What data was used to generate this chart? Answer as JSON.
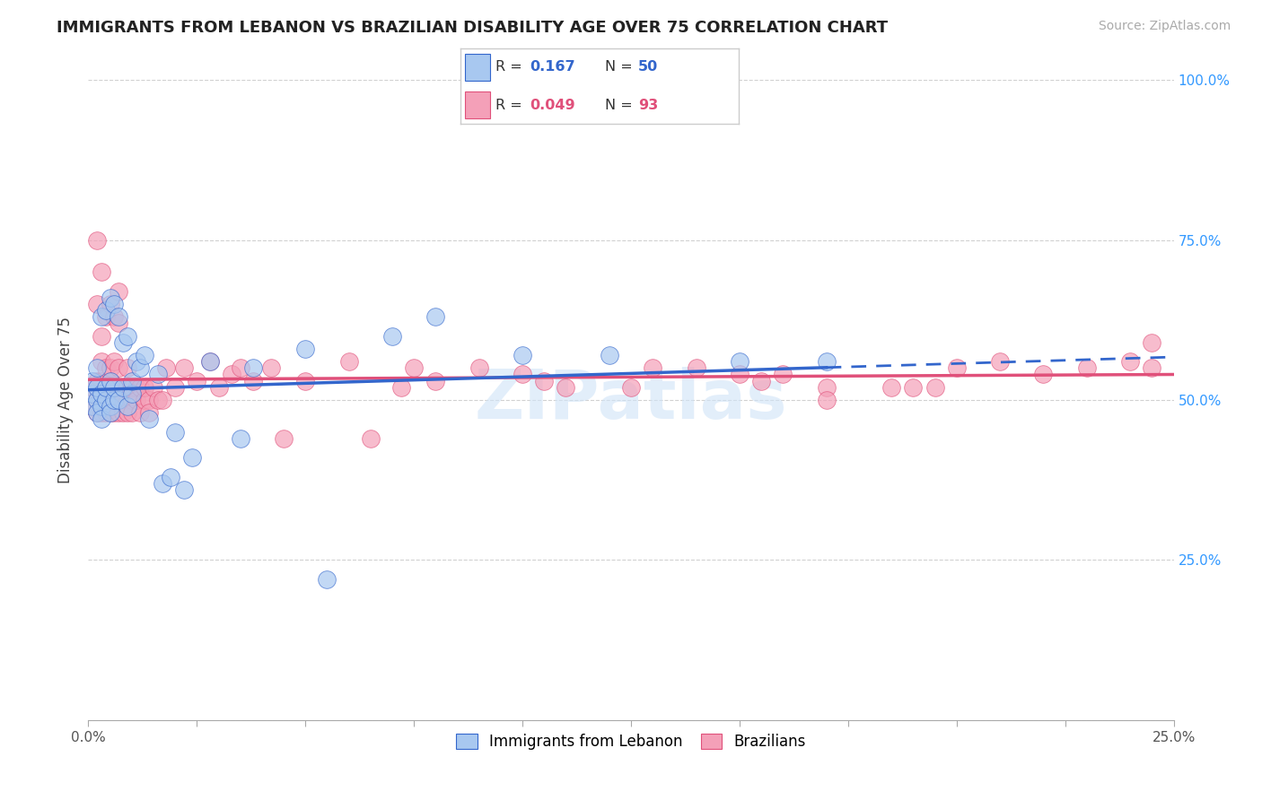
{
  "title": "IMMIGRANTS FROM LEBANON VS BRAZILIAN DISABILITY AGE OVER 75 CORRELATION CHART",
  "source": "Source: ZipAtlas.com",
  "ylabel": "Disability Age Over 75",
  "yticks": [
    0.0,
    0.25,
    0.5,
    0.75,
    1.0
  ],
  "ytick_labels": [
    "",
    "25.0%",
    "50.0%",
    "75.0%",
    "100.0%"
  ],
  "r_lebanon": 0.167,
  "n_lebanon": 50,
  "r_brazil": 0.049,
  "n_brazil": 93,
  "color_lebanon": "#a8c8f0",
  "color_brazil": "#f4a0b8",
  "trendline_lebanon": "#3366cc",
  "trendline_brazil": "#e0507a",
  "watermark": "ZIPatlas",
  "legend_label_1": "Immigrants from Lebanon",
  "legend_label_2": "Brazilians",
  "lebanon_x": [
    0.001,
    0.001,
    0.001,
    0.002,
    0.002,
    0.002,
    0.002,
    0.003,
    0.003,
    0.003,
    0.003,
    0.004,
    0.004,
    0.004,
    0.005,
    0.005,
    0.005,
    0.005,
    0.006,
    0.006,
    0.006,
    0.007,
    0.007,
    0.008,
    0.008,
    0.009,
    0.009,
    0.01,
    0.01,
    0.011,
    0.012,
    0.013,
    0.014,
    0.016,
    0.017,
    0.019,
    0.02,
    0.022,
    0.024,
    0.028,
    0.035,
    0.038,
    0.05,
    0.055,
    0.07,
    0.08,
    0.1,
    0.12,
    0.15,
    0.17
  ],
  "lebanon_y": [
    0.49,
    0.51,
    0.53,
    0.5,
    0.48,
    0.52,
    0.55,
    0.49,
    0.51,
    0.63,
    0.47,
    0.5,
    0.52,
    0.64,
    0.49,
    0.53,
    0.48,
    0.66,
    0.5,
    0.52,
    0.65,
    0.5,
    0.63,
    0.52,
    0.59,
    0.49,
    0.6,
    0.51,
    0.53,
    0.56,
    0.55,
    0.57,
    0.47,
    0.54,
    0.37,
    0.38,
    0.45,
    0.36,
    0.41,
    0.56,
    0.44,
    0.55,
    0.58,
    0.22,
    0.6,
    0.63,
    0.57,
    0.57,
    0.56,
    0.56
  ],
  "brazil_x": [
    0.001,
    0.001,
    0.002,
    0.002,
    0.002,
    0.002,
    0.002,
    0.003,
    0.003,
    0.003,
    0.003,
    0.003,
    0.003,
    0.004,
    0.004,
    0.004,
    0.004,
    0.004,
    0.005,
    0.005,
    0.005,
    0.005,
    0.005,
    0.006,
    0.006,
    0.006,
    0.006,
    0.007,
    0.007,
    0.007,
    0.007,
    0.007,
    0.007,
    0.008,
    0.008,
    0.008,
    0.009,
    0.009,
    0.009,
    0.009,
    0.01,
    0.01,
    0.01,
    0.011,
    0.011,
    0.012,
    0.012,
    0.013,
    0.013,
    0.014,
    0.014,
    0.015,
    0.016,
    0.017,
    0.018,
    0.02,
    0.022,
    0.025,
    0.028,
    0.03,
    0.033,
    0.035,
    0.038,
    0.042,
    0.045,
    0.05,
    0.06,
    0.065,
    0.072,
    0.08,
    0.09,
    0.1,
    0.11,
    0.13,
    0.15,
    0.16,
    0.17,
    0.185,
    0.195,
    0.2,
    0.21,
    0.22,
    0.23,
    0.24,
    0.245,
    0.245,
    0.19,
    0.17,
    0.155,
    0.14,
    0.125,
    0.105,
    0.075
  ],
  "brazil_y": [
    0.49,
    0.52,
    0.5,
    0.48,
    0.53,
    0.75,
    0.65,
    0.5,
    0.48,
    0.53,
    0.56,
    0.6,
    0.7,
    0.5,
    0.48,
    0.55,
    0.63,
    0.52,
    0.5,
    0.48,
    0.53,
    0.55,
    0.65,
    0.48,
    0.52,
    0.56,
    0.63,
    0.5,
    0.48,
    0.52,
    0.55,
    0.62,
    0.67,
    0.5,
    0.52,
    0.48,
    0.5,
    0.55,
    0.48,
    0.52,
    0.5,
    0.52,
    0.48,
    0.52,
    0.5,
    0.52,
    0.48,
    0.5,
    0.52,
    0.5,
    0.48,
    0.52,
    0.5,
    0.5,
    0.55,
    0.52,
    0.55,
    0.53,
    0.56,
    0.52,
    0.54,
    0.55,
    0.53,
    0.55,
    0.44,
    0.53,
    0.56,
    0.44,
    0.52,
    0.53,
    0.55,
    0.54,
    0.52,
    0.55,
    0.54,
    0.54,
    0.52,
    0.52,
    0.52,
    0.55,
    0.56,
    0.54,
    0.55,
    0.56,
    0.55,
    0.59,
    0.52,
    0.5,
    0.53,
    0.55,
    0.52,
    0.53,
    0.55
  ]
}
